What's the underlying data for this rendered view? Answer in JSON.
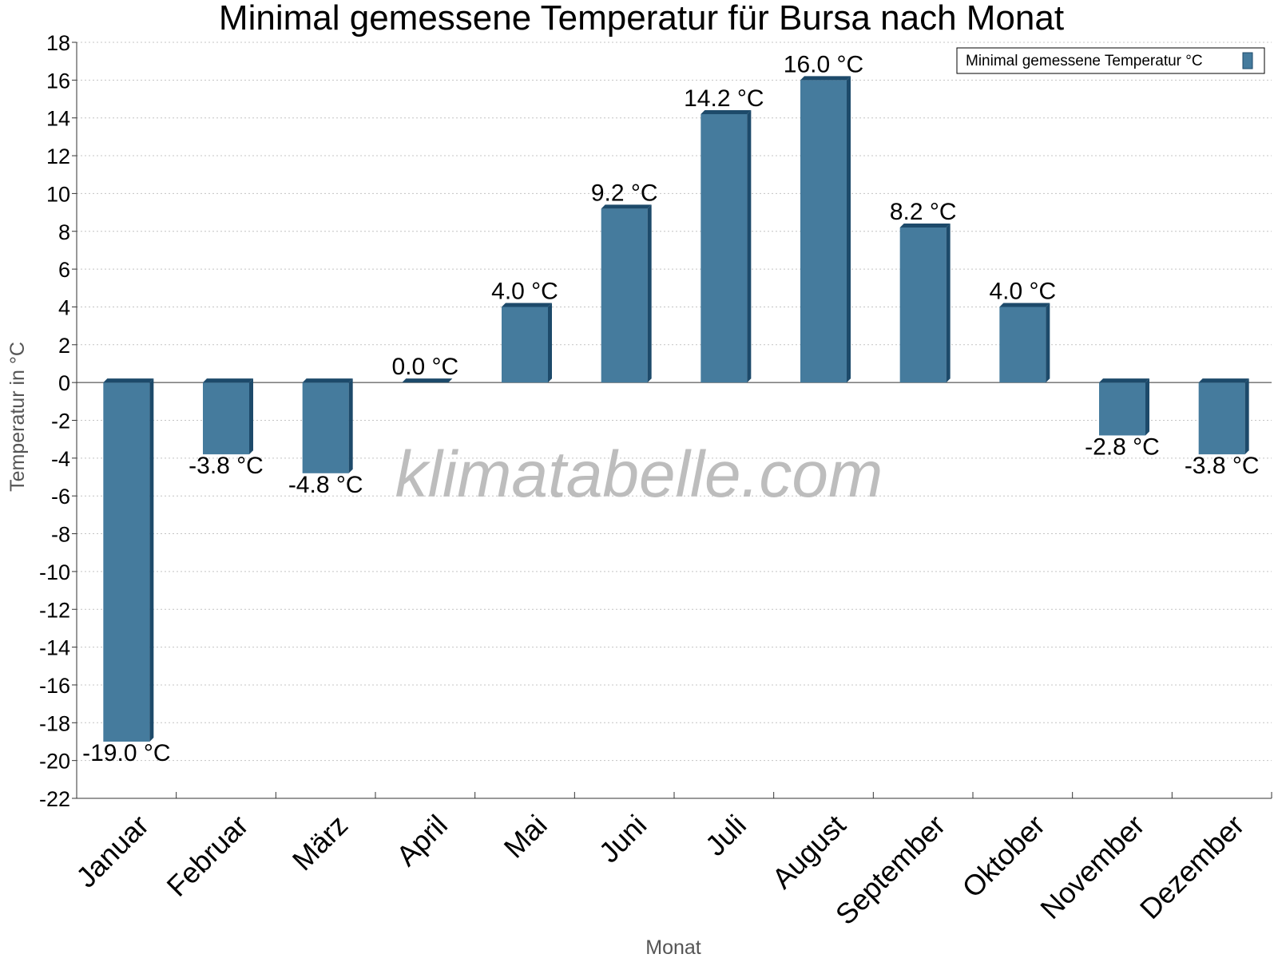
{
  "chart_data": {
    "type": "bar",
    "title": "Minimal gemessene Temperatur für Bursa nach Monat",
    "xlabel": "Monat",
    "ylabel": "Temperatur in °C",
    "categories": [
      "Januar",
      "Februar",
      "März",
      "April",
      "Mai",
      "Juni",
      "Juli",
      "August",
      "September",
      "Oktober",
      "November",
      "Dezember"
    ],
    "series": [
      {
        "name": "Minimal gemessene Temperatur °C",
        "values": [
          -19.0,
          -3.8,
          -4.8,
          0.0,
          4.0,
          9.2,
          14.2,
          16.0,
          8.2,
          4.0,
          -2.8,
          -3.8
        ],
        "labels": [
          "-19.0 °C",
          "-3.8 °C",
          "-4.8 °C",
          "0.0 °C",
          "4.0 °C",
          "9.2 °C",
          "14.2 °C",
          "16.0 °C",
          "8.2 °C",
          "4.0 °C",
          "-2.8 °C",
          "-3.8 °C"
        ]
      }
    ],
    "ylim": [
      -22,
      18
    ],
    "yticks": [
      18,
      16,
      14,
      12,
      10,
      8,
      6,
      4,
      2,
      0,
      -2,
      -4,
      -6,
      -8,
      -10,
      -12,
      -14,
      -16,
      -18,
      -20,
      -22
    ],
    "grid": true,
    "legend_position": "top-right",
    "watermark": "klimatabelle.com",
    "colors": {
      "bar_front": "#457b9d",
      "bar_side": "#1d4a6a",
      "bar_top": "#1d4a6a"
    }
  }
}
